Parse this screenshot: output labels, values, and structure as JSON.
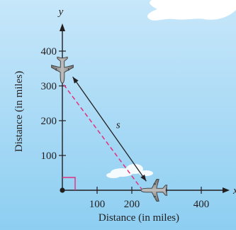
{
  "figure": {
    "x_axis": {
      "variable": "x",
      "label": "Distance (in miles)",
      "ticks": [
        100,
        200,
        400
      ],
      "unlabeled_ticks": [
        300
      ]
    },
    "y_axis": {
      "variable": "y",
      "label": "Distance (in miles)",
      "ticks": [
        100,
        200,
        300,
        400
      ]
    },
    "segment_label": "s",
    "plane_positions": {
      "on_y_axis": [
        0,
        340
      ],
      "on_x_axis": [
        240,
        0
      ]
    },
    "colors": {
      "sky_top": "#bfe3f8",
      "sky_bottom": "#8ccdf0",
      "axis": "#231f20",
      "dashed_path": "#e0307e",
      "right_angle": "#e0307e",
      "plane": "#8a8a8a"
    },
    "icons": [
      "airplane-icon",
      "airplane-icon"
    ]
  }
}
